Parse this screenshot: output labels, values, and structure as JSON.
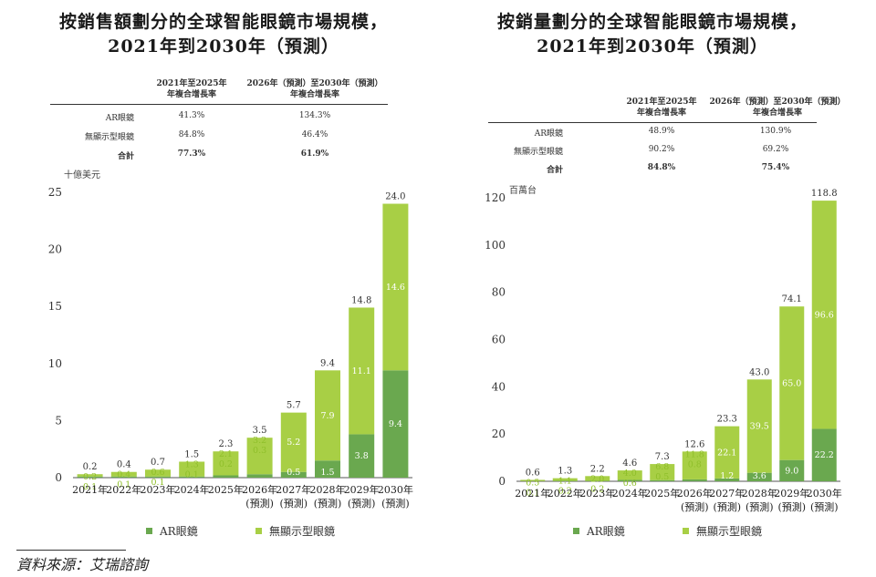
{
  "colors": {
    "ar": "#6aa84f",
    "nodisp": "#a8cf45",
    "nodisp_label": "#8fbf2a"
  },
  "legend": {
    "ar": "AR眼鏡",
    "nodisp": "無顯示型眼鏡"
  },
  "source": "資料來源：艾瑞諮詢",
  "chart_data": [
    {
      "type": "bar",
      "stacked": true,
      "title": "按銷售額劃分的全球智能眼鏡市場規模，",
      "subtitle": "2021年到2030年（預測）",
      "ylabel": "十億美元",
      "ylim": [
        0,
        25
      ],
      "yticks": [
        "0",
        "5",
        "10",
        "15",
        "20",
        "25"
      ],
      "yticks_num": [
        0,
        5,
        10,
        15,
        20,
        25
      ],
      "categories": [
        "2021年",
        "2022年",
        "2023年",
        "2024年",
        "2025年",
        "2026年",
        "2027年",
        "2028年",
        "2029年",
        "2030年"
      ],
      "cat_sub": [
        "",
        "",
        "",
        "",
        "",
        "(預測)",
        "(預測)",
        "(預測)",
        "(預測)",
        "(預測)"
      ],
      "series": [
        {
          "name": "AR眼鏡",
          "values": [
            0.1,
            0.1,
            0.1,
            0.1,
            0.2,
            0.3,
            0.5,
            1.5,
            3.8,
            9.4
          ],
          "labels": [
            "0.1",
            "0.1",
            "0.1",
            "0.1",
            "0.2",
            "0.3",
            "0.5",
            "1.5",
            "3.8",
            "9.4"
          ]
        },
        {
          "name": "無顯示型眼鏡",
          "values": [
            0.2,
            0.4,
            0.6,
            1.3,
            2.1,
            3.2,
            5.2,
            7.9,
            11.1,
            14.6
          ],
          "labels": [
            "0.2",
            "0.4",
            "0.6",
            "1.3",
            "2.1",
            "3.2",
            "5.2",
            "7.9",
            "11.1",
            "14.6"
          ]
        }
      ],
      "totals": [
        0.2,
        0.4,
        0.7,
        1.5,
        2.3,
        3.5,
        5.7,
        9.4,
        14.8,
        24.0
      ],
      "total_labels": [
        "0.2",
        "0.4",
        "0.7",
        "1.5",
        "2.3",
        "3.5",
        "5.7",
        "9.4",
        "14.8",
        "24.0"
      ],
      "cagr": {
        "col1": [
          "2021年至2025年",
          "年複合增長率"
        ],
        "col2": [
          "2026年（預測）至2030年（預測）",
          "年複合增長率"
        ],
        "rows": [
          {
            "label": "AR眼鏡",
            "v1": "41.3%",
            "v2": "134.3%"
          },
          {
            "label": "無顯示型眼鏡",
            "v1": "84.8%",
            "v2": "46.4%"
          },
          {
            "label": "合計",
            "v1": "77.3%",
            "v2": "61.9%"
          }
        ]
      }
    },
    {
      "type": "bar",
      "stacked": true,
      "title": "按銷量劃分的全球智能眼鏡市場規模，",
      "subtitle": "2021年到2030年（預測）",
      "ylabel": "百萬台",
      "ylim": [
        0,
        120
      ],
      "yticks": [
        "0",
        "20",
        "40",
        "60",
        "80",
        "100",
        "120"
      ],
      "yticks_num": [
        0,
        20,
        40,
        60,
        80,
        100,
        120
      ],
      "categories": [
        "2021年",
        "2022年",
        "2023年",
        "2024年",
        "2025年",
        "2026年",
        "2027年",
        "2028年",
        "2029年",
        "2030年"
      ],
      "cat_sub": [
        "",
        "",
        "",
        "",
        "",
        "(預測)",
        "(預測)",
        "(預測)",
        "(預測)",
        "(預測)"
      ],
      "series": [
        {
          "name": "AR眼鏡",
          "values": [
            0.1,
            0.2,
            0.2,
            0.6,
            0.5,
            0.8,
            1.2,
            3.6,
            9.0,
            22.2
          ],
          "labels": [
            "0.1",
            "0.2",
            "0.2",
            "0.6",
            "0.5",
            "0.8",
            "1.2",
            "3.6",
            "9.0",
            "22.2"
          ]
        },
        {
          "name": "無顯示型眼鏡",
          "values": [
            0.5,
            1.1,
            2.0,
            4.0,
            6.8,
            11.8,
            22.1,
            39.5,
            65.0,
            96.6
          ],
          "labels": [
            "0.5",
            "1.1",
            "2.0",
            "4.0",
            "6.8",
            "11.8",
            "22.1",
            "39.5",
            "65.0",
            "96.6"
          ]
        }
      ],
      "totals": [
        0.6,
        1.3,
        2.2,
        4.6,
        7.3,
        12.6,
        23.3,
        43.0,
        74.1,
        118.8
      ],
      "total_labels": [
        "0.6",
        "1.3",
        "2.2",
        "4.6",
        "7.3",
        "12.6",
        "23.3",
        "43.0",
        "74.1",
        "118.8"
      ],
      "cagr": {
        "col1": [
          "2021年至2025年",
          "年複合增長率"
        ],
        "col2": [
          "2026年（預測）至2030年（預測）",
          "年複合增長率"
        ],
        "rows": [
          {
            "label": "AR眼鏡",
            "v1": "48.9%",
            "v2": "130.9%"
          },
          {
            "label": "無顯示型眼鏡",
            "v1": "90.2%",
            "v2": "69.2%"
          },
          {
            "label": "合計",
            "v1": "84.8%",
            "v2": "75.4%"
          }
        ]
      }
    }
  ]
}
